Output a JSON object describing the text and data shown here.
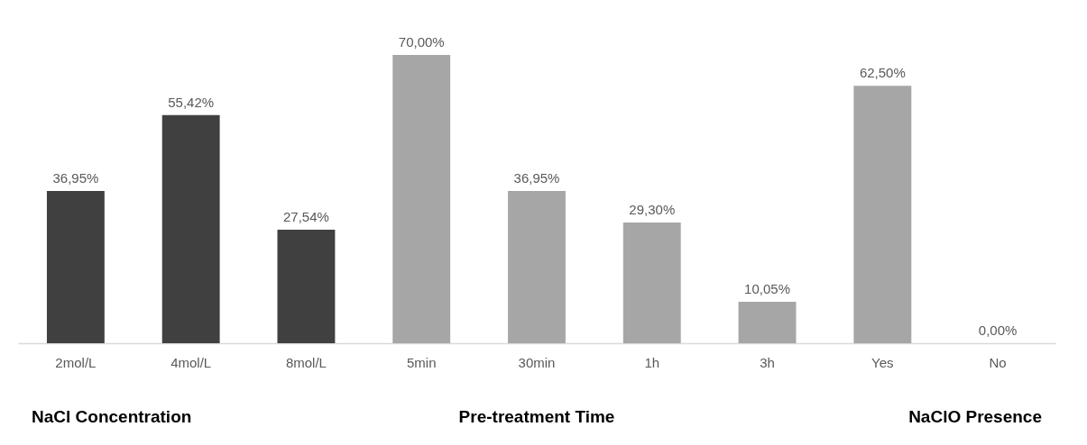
{
  "chart_data": {
    "type": "bar",
    "categories": [
      "2mol/L",
      "4mol/L",
      "8mol/L",
      "5min",
      "30min",
      "1h",
      "3h",
      "Yes",
      "No"
    ],
    "values": [
      36.95,
      55.42,
      27.54,
      70.0,
      36.95,
      29.3,
      10.05,
      62.5,
      0.0
    ],
    "colors": [
      "#404040",
      "#404040",
      "#404040",
      "#a6a6a6",
      "#a6a6a6",
      "#a6a6a6",
      "#a6a6a6",
      "#a6a6a6",
      "#a6a6a6"
    ],
    "value_labels": [
      "36,95%",
      "55,42%",
      "27,54%",
      "70,00%",
      "36,95%",
      "29,30%",
      "10,05%",
      "62,50%",
      "0,00%"
    ],
    "annotations": [
      "NaCl Concentration",
      "Pre-treatment Time",
      "NaClO Presence"
    ]
  }
}
